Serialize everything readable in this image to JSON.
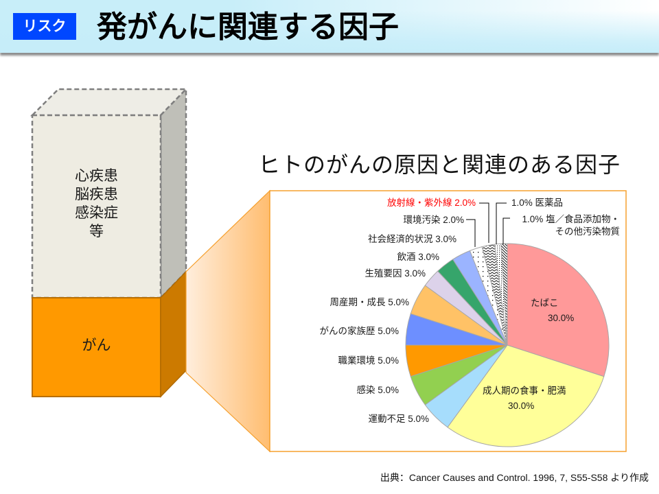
{
  "header": {
    "badge": "リスク",
    "title": "発がんに関連する因子"
  },
  "left_box": {
    "upper_lines": [
      "心疾患",
      "脳疾患",
      "感染症",
      "等"
    ],
    "lower_label": "がん"
  },
  "chart_title": "ヒトのがんの原因と関連のある因子",
  "citation": "出典：Cancer Causes and Control. 1996, 7, S55-S58 より作成",
  "colors": {
    "badge_bg": "#0047FF",
    "frame_border": "#F5A02E",
    "cancer_bar": "#FF9900",
    "other_bar": "#EEECE2",
    "highlight_label": "#FF0000"
  },
  "chart_data": {
    "type": "pie",
    "title": "ヒトのがんの原因と関連のある因子",
    "unit": "%",
    "start_angle_deg": 0,
    "direction": "clockwise",
    "categories": [
      "たばこ",
      "成人期の食事・肥満",
      "運動不足",
      "感染",
      "職業環境",
      "がんの家族歴",
      "周産期・成長",
      "生殖要因",
      "飲酒",
      "社会経済的状況",
      "環境汚染",
      "放射線・紫外線",
      "医薬品",
      "塩／食品添加物・その他汚染物質"
    ],
    "values": [
      30.0,
      30.0,
      5.0,
      5.0,
      5.0,
      5.0,
      5.0,
      3.0,
      3.0,
      3.0,
      2.0,
      2.0,
      1.0,
      1.0
    ],
    "slices": [
      {
        "key": "tobacco",
        "label": "たばこ",
        "value": 30.0,
        "value_text": "30.0%",
        "color": "#FF9999"
      },
      {
        "key": "adult-diet-obesity",
        "label": "成人期の食事・肥満",
        "value": 30.0,
        "value_text": "30.0%",
        "color": "#FFFF99"
      },
      {
        "key": "lack-of-exercise",
        "label": "運動不足",
        "value": 5.0,
        "value_text": "5.0%",
        "color": "#A6DDFC"
      },
      {
        "key": "infection",
        "label": "感染",
        "value": 5.0,
        "value_text": "5.0%",
        "color": "#92D050"
      },
      {
        "key": "occupational-environment",
        "label": "職業環境",
        "value": 5.0,
        "value_text": "5.0%",
        "color": "#FF9900"
      },
      {
        "key": "family-history",
        "label": "がんの家族歴",
        "value": 5.0,
        "value_text": "5.0%",
        "color": "#6D8FFF"
      },
      {
        "key": "perinatal-growth",
        "label": "周産期・成長",
        "value": 5.0,
        "value_text": "5.0%",
        "color": "#FFC266"
      },
      {
        "key": "reproductive-factors",
        "label": "生殖要因",
        "value": 3.0,
        "value_text": "3.0%",
        "color": "#DCD2EA"
      },
      {
        "key": "alcohol",
        "label": "飲酒",
        "value": 3.0,
        "value_text": "3.0%",
        "color": "#36A56B"
      },
      {
        "key": "socioeconomic-status",
        "label": "社会経済的状況",
        "value": 3.0,
        "value_text": "3.0%",
        "color": "#9BB4FF"
      },
      {
        "key": "environmental-pollution",
        "label": "環境汚染",
        "value": 2.0,
        "value_text": "2.0%",
        "color": "#FFFFFF",
        "pattern": "dots-sparse"
      },
      {
        "key": "radiation-uv",
        "label": "放射線・紫外線",
        "value": 2.0,
        "value_text": "2.0%",
        "color": "#FFFFFF",
        "pattern": "zigzag",
        "label_color": "#FF0000"
      },
      {
        "key": "medicine",
        "label": "医薬品",
        "value": 1.0,
        "value_text": "1.0%",
        "color": "#FFFFFF",
        "pattern": "dots-dense"
      },
      {
        "key": "salt-food-additives-contaminants",
        "label": "塩／食品添加物・その他汚染物質",
        "label_lines": [
          "塩／食品添加物・",
          "その他汚染物質"
        ],
        "value": 1.0,
        "value_text": "1.0%",
        "color": "#FFFFFF",
        "pattern": "diagonal-stripes"
      }
    ],
    "legend": "none (data labels beside slices)"
  }
}
